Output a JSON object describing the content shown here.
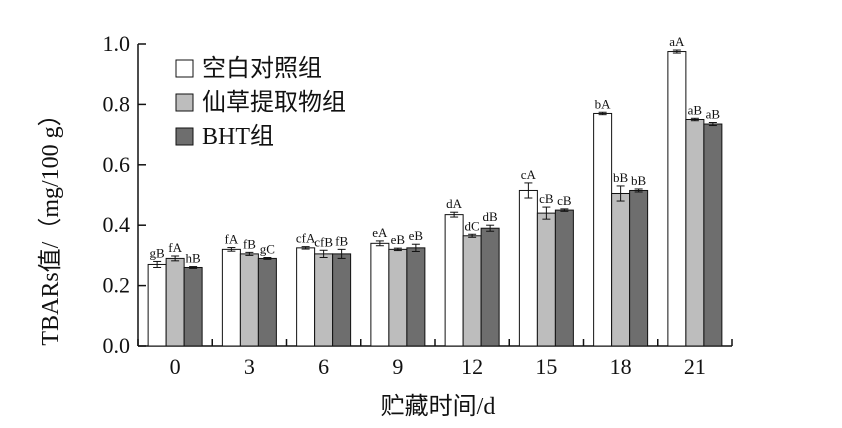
{
  "chart_data": {
    "type": "bar",
    "title": "",
    "xlabel": "贮藏时间/d",
    "ylabel": "TBARs值/（mg/100 g）",
    "ylim": [
      0,
      1.0
    ],
    "yticks": [
      "0.0",
      "0.2",
      "0.4",
      "0.6",
      "0.8",
      "1.0"
    ],
    "categories": [
      "0",
      "3",
      "6",
      "9",
      "12",
      "15",
      "18",
      "21"
    ],
    "legend_position": "top-left",
    "grid": false,
    "series": [
      {
        "name": "空白对照组",
        "color": "#ffffff",
        "values": [
          0.27,
          0.32,
          0.325,
          0.34,
          0.435,
          0.515,
          0.77,
          0.975
        ],
        "errors": [
          0.01,
          0.006,
          0.004,
          0.008,
          0.008,
          0.025,
          0.004,
          0.005
        ],
        "labels": [
          "gB",
          "fA",
          "cfA",
          "eA",
          "dA",
          "cA",
          "bA",
          "aA"
        ]
      },
      {
        "name": "仙草提取物组",
        "color": "#bdbdbd",
        "values": [
          0.29,
          0.305,
          0.305,
          0.32,
          0.365,
          0.44,
          0.505,
          0.75
        ],
        "errors": [
          0.008,
          0.005,
          0.012,
          0.004,
          0.005,
          0.02,
          0.025,
          0.004
        ],
        "labels": [
          "fA",
          "fB",
          "cfB",
          "eB",
          "dC",
          "cB",
          "bB",
          "aB"
        ]
      },
      {
        "name": "BHT组",
        "color": "#6e6e6e",
        "values": [
          0.26,
          0.29,
          0.305,
          0.325,
          0.39,
          0.45,
          0.515,
          0.735
        ],
        "errors": [
          0.003,
          0.003,
          0.015,
          0.012,
          0.01,
          0.004,
          0.005,
          0.005
        ],
        "labels": [
          "hB",
          "gC",
          "fB",
          "eB",
          "dB",
          "cB",
          "bB",
          "aB"
        ]
      }
    ]
  }
}
